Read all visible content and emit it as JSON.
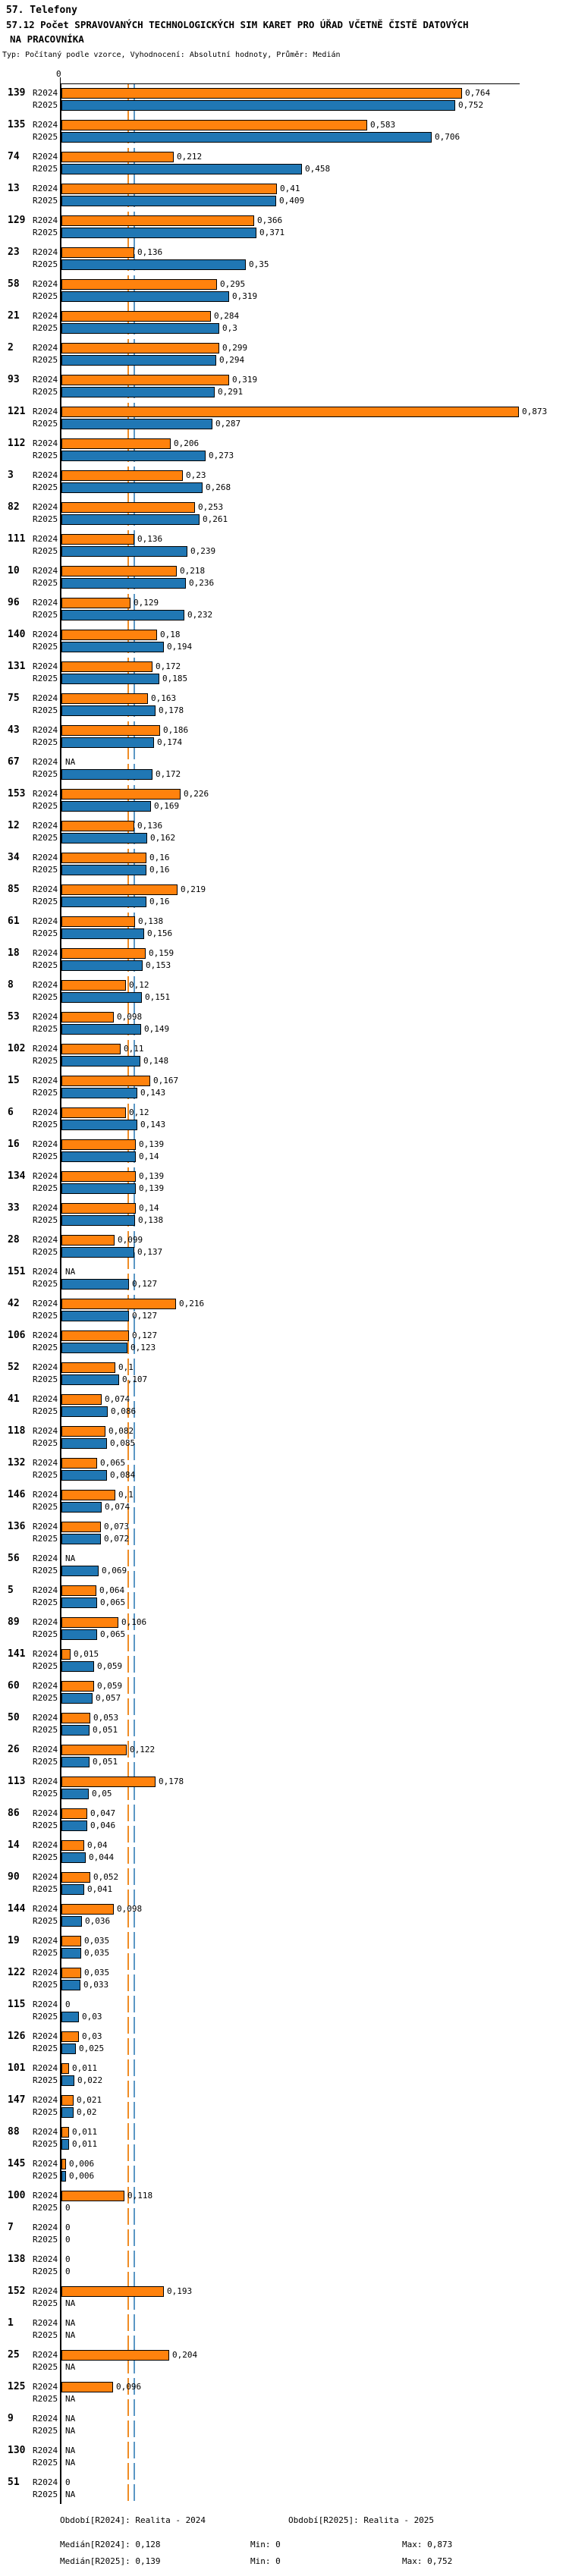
{
  "title": "57. Telefony",
  "subtitle_line1": "57.12 Počet SPRAVOVANÝCH TECHNOLOGICKÝCH SIM KARET PRO ÚŘAD VČETNĚ ČISTĚ DATOVÝCH",
  "subtitle_line2": "NA PRACOVNÍKA",
  "meta": "Typ: Počítaný podle vzorce, Vyhodnocení: Absolutní hodnoty, Průměr: Medián",
  "axis": {
    "zero_label": "0"
  },
  "series_labels": {
    "r2024": "R2024",
    "r2025": "R2025"
  },
  "colors": {
    "bar_2024": "#ff820d",
    "bar_2025": "#2077b4",
    "median_line_2024": "#ef8c25",
    "median_line_2025": "#5b97c5"
  },
  "chart_data": {
    "type": "bar",
    "orientation": "horizontal",
    "title": "57.12 Počet SPRAVOVANÝCH TECHNOLOGICKÝCH SIM KARET PRO ÚŘAD VČETNĚ ČISTĚ DATOVÝCH NA PRACOVNÍKA",
    "series_names": [
      "R2024",
      "R2025"
    ],
    "x_tick_labels": [
      "0"
    ],
    "xlim": [
      0,
      0.873
    ],
    "na_text": "NA",
    "value_format": "decimal-comma",
    "medians": {
      "R2024": "0,128",
      "R2025": "0,139"
    },
    "min": {
      "R2024": "0",
      "R2025": "0"
    },
    "max": {
      "R2024": "0,873",
      "R2025": "0,752"
    },
    "rows": [
      {
        "id": "139",
        "R2024": "0,764",
        "R2025": "0,752"
      },
      {
        "id": "135",
        "R2024": "0,583",
        "R2025": "0,706"
      },
      {
        "id": "74",
        "R2024": "0,212",
        "R2025": "0,458"
      },
      {
        "id": "13",
        "R2024": "0,41",
        "R2025": "0,409"
      },
      {
        "id": "129",
        "R2024": "0,366",
        "R2025": "0,371"
      },
      {
        "id": "23",
        "R2024": "0,136",
        "R2025": "0,35"
      },
      {
        "id": "58",
        "R2024": "0,295",
        "R2025": "0,319"
      },
      {
        "id": "21",
        "R2024": "0,284",
        "R2025": "0,3"
      },
      {
        "id": "2",
        "R2024": "0,299",
        "R2025": "0,294"
      },
      {
        "id": "93",
        "R2024": "0,319",
        "R2025": "0,291"
      },
      {
        "id": "121",
        "R2024": "0,873",
        "R2025": "0,287"
      },
      {
        "id": "112",
        "R2024": "0,206",
        "R2025": "0,273"
      },
      {
        "id": "3",
        "R2024": "0,23",
        "R2025": "0,268"
      },
      {
        "id": "82",
        "R2024": "0,253",
        "R2025": "0,261"
      },
      {
        "id": "111",
        "R2024": "0,136",
        "R2025": "0,239"
      },
      {
        "id": "10",
        "R2024": "0,218",
        "R2025": "0,236"
      },
      {
        "id": "96",
        "R2024": "0,129",
        "R2025": "0,232"
      },
      {
        "id": "140",
        "R2024": "0,18",
        "R2025": "0,194"
      },
      {
        "id": "131",
        "R2024": "0,172",
        "R2025": "0,185"
      },
      {
        "id": "75",
        "R2024": "0,163",
        "R2025": "0,178"
      },
      {
        "id": "43",
        "R2024": "0,186",
        "R2025": "0,174"
      },
      {
        "id": "67",
        "R2024": "NA",
        "R2025": "0,172"
      },
      {
        "id": "153",
        "R2024": "0,226",
        "R2025": "0,169"
      },
      {
        "id": "12",
        "R2024": "0,136",
        "R2025": "0,162"
      },
      {
        "id": "34",
        "R2024": "0,16",
        "R2025": "0,16"
      },
      {
        "id": "85",
        "R2024": "0,219",
        "R2025": "0,16"
      },
      {
        "id": "61",
        "R2024": "0,138",
        "R2025": "0,156"
      },
      {
        "id": "18",
        "R2024": "0,159",
        "R2025": "0,153"
      },
      {
        "id": "8",
        "R2024": "0,12",
        "R2025": "0,151"
      },
      {
        "id": "53",
        "R2024": "0,098",
        "R2025": "0,149"
      },
      {
        "id": "102",
        "R2024": "0,11",
        "R2025": "0,148"
      },
      {
        "id": "15",
        "R2024": "0,167",
        "R2025": "0,143"
      },
      {
        "id": "6",
        "R2024": "0,12",
        "R2025": "0,143"
      },
      {
        "id": "16",
        "R2024": "0,139",
        "R2025": "0,14"
      },
      {
        "id": "134",
        "R2024": "0,139",
        "R2025": "0,139"
      },
      {
        "id": "33",
        "R2024": "0,14",
        "R2025": "0,138"
      },
      {
        "id": "28",
        "R2024": "0,099",
        "R2025": "0,137"
      },
      {
        "id": "151",
        "R2024": "NA",
        "R2025": "0,127"
      },
      {
        "id": "42",
        "R2024": "0,216",
        "R2025": "0,127"
      },
      {
        "id": "106",
        "R2024": "0,127",
        "R2025": "0,123"
      },
      {
        "id": "52",
        "R2024": "0,1",
        "R2025": "0,107"
      },
      {
        "id": "41",
        "R2024": "0,074",
        "R2025": "0,086"
      },
      {
        "id": "118",
        "R2024": "0,082",
        "R2025": "0,085"
      },
      {
        "id": "132",
        "R2024": "0,065",
        "R2025": "0,084"
      },
      {
        "id": "146",
        "R2024": "0,1",
        "R2025": "0,074"
      },
      {
        "id": "136",
        "R2024": "0,073",
        "R2025": "0,072"
      },
      {
        "id": "56",
        "R2024": "NA",
        "R2025": "0,069"
      },
      {
        "id": "5",
        "R2024": "0,064",
        "R2025": "0,065"
      },
      {
        "id": "89",
        "R2024": "0,106",
        "R2025": "0,065"
      },
      {
        "id": "141",
        "R2024": "0,015",
        "R2025": "0,059"
      },
      {
        "id": "60",
        "R2024": "0,059",
        "R2025": "0,057"
      },
      {
        "id": "50",
        "R2024": "0,053",
        "R2025": "0,051"
      },
      {
        "id": "26",
        "R2024": "0,122",
        "R2025": "0,051"
      },
      {
        "id": "113",
        "R2024": "0,178",
        "R2025": "0,05"
      },
      {
        "id": "86",
        "R2024": "0,047",
        "R2025": "0,046"
      },
      {
        "id": "14",
        "R2024": "0,04",
        "R2025": "0,044"
      },
      {
        "id": "90",
        "R2024": "0,052",
        "R2025": "0,041"
      },
      {
        "id": "144",
        "R2024": "0,098",
        "R2025": "0,036"
      },
      {
        "id": "19",
        "R2024": "0,035",
        "R2025": "0,035"
      },
      {
        "id": "122",
        "R2024": "0,035",
        "R2025": "0,033"
      },
      {
        "id": "115",
        "R2024": "0",
        "R2025": "0,03"
      },
      {
        "id": "126",
        "R2024": "0,03",
        "R2025": "0,025"
      },
      {
        "id": "101",
        "R2024": "0,011",
        "R2025": "0,022"
      },
      {
        "id": "147",
        "R2024": "0,021",
        "R2025": "0,02"
      },
      {
        "id": "88",
        "R2024": "0,011",
        "R2025": "0,011"
      },
      {
        "id": "145",
        "R2024": "0,006",
        "R2025": "0,006"
      },
      {
        "id": "100",
        "R2024": "0,118",
        "R2025": "0"
      },
      {
        "id": "7",
        "R2024": "0",
        "R2025": "0"
      },
      {
        "id": "138",
        "R2024": "0",
        "R2025": "0"
      },
      {
        "id": "152",
        "R2024": "0,193",
        "R2025": "NA"
      },
      {
        "id": "1",
        "R2024": "NA",
        "R2025": "NA"
      },
      {
        "id": "25",
        "R2024": "0,204",
        "R2025": "NA"
      },
      {
        "id": "125",
        "R2024": "0,096",
        "R2025": "NA"
      },
      {
        "id": "9",
        "R2024": "NA",
        "R2025": "NA"
      },
      {
        "id": "130",
        "R2024": "NA",
        "R2025": "NA"
      },
      {
        "id": "51",
        "R2024": "0",
        "R2025": "NA"
      }
    ]
  },
  "footer": {
    "period_2024": "Období[R2024]: Realita - 2024",
    "period_2025": "Období[R2025]: Realita - 2025",
    "median_2024": "Medián[R2024]: 0,128",
    "median_2025": "Medián[R2025]: 0,139",
    "min_2024": "Min: 0",
    "min_2025": "Min: 0",
    "max_2024": "Max: 0,873",
    "max_2025": "Max: 0,752"
  }
}
